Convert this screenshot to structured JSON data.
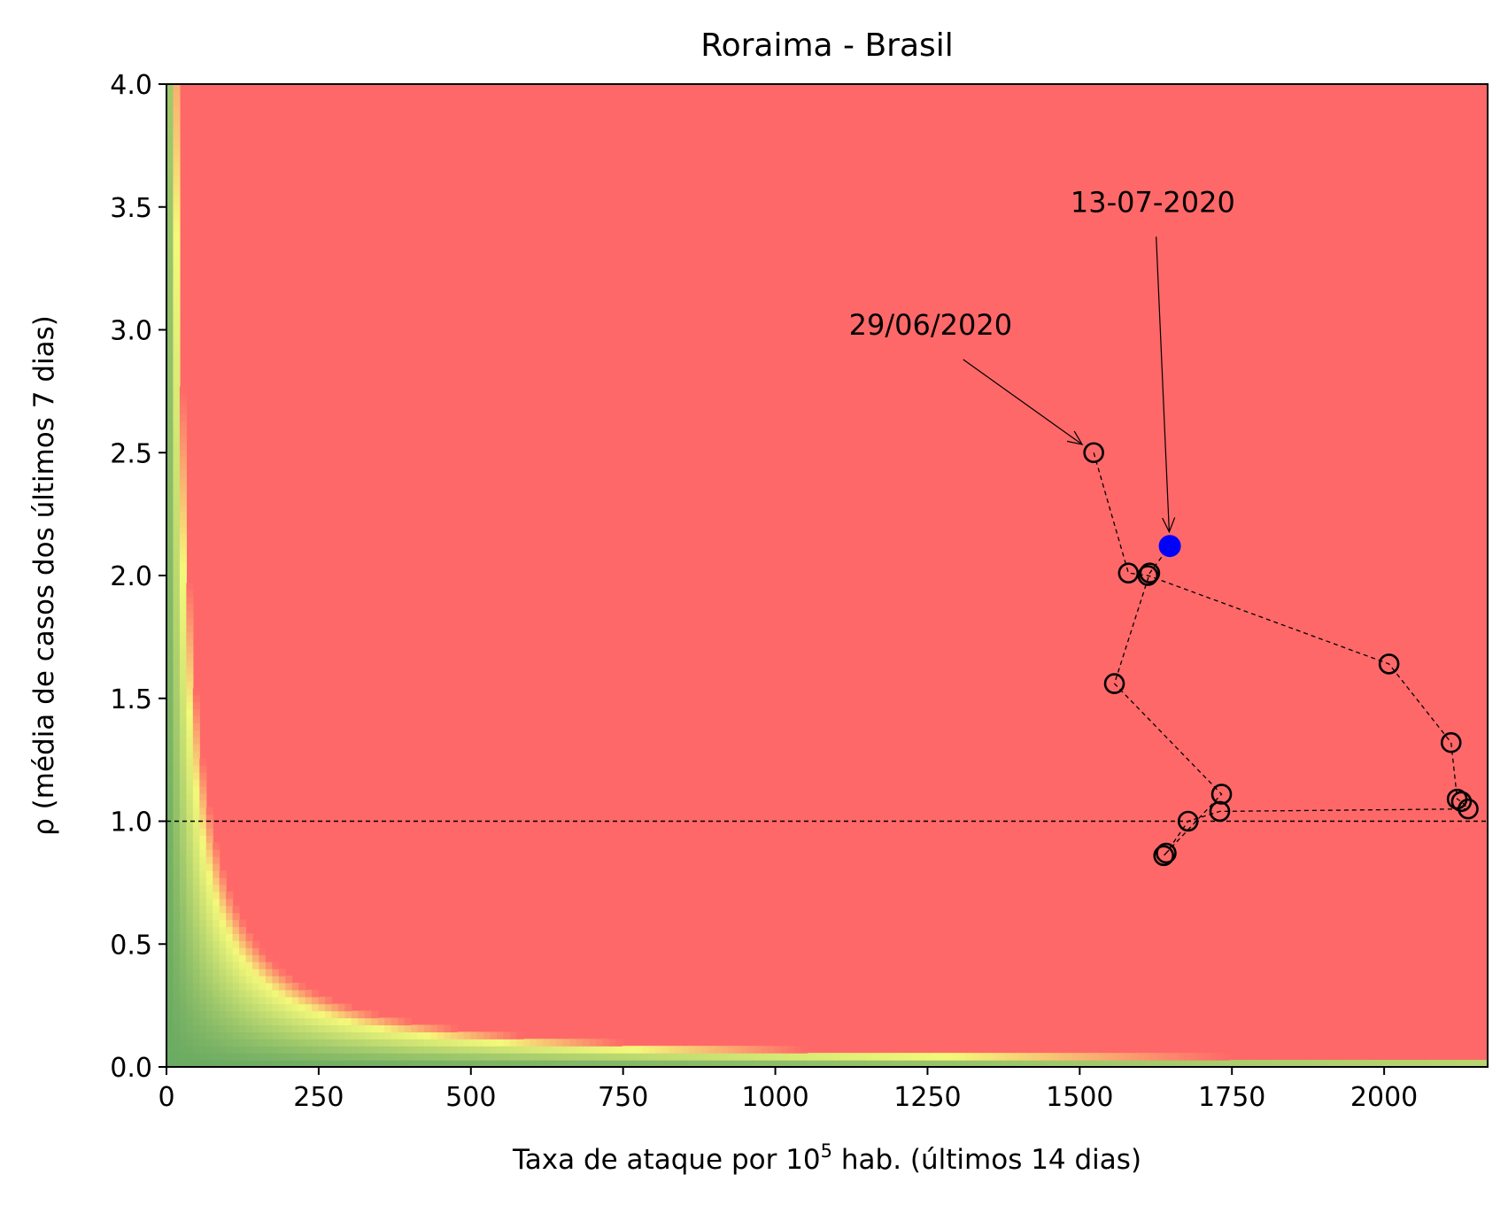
{
  "chart_data": {
    "type": "scatter",
    "title": "Roraima - Brasil",
    "xlabel_main": "Taxa de ataque por 10",
    "xlabel_sup": "5",
    "xlabel_rest": " hab. (últimos 14 dias)",
    "ylabel": "ρ (média de casos dos últimos 7 dias)",
    "xlim": [
      0,
      2170
    ],
    "ylim": [
      0,
      4.0
    ],
    "xticks": [
      0,
      250,
      500,
      750,
      1000,
      1250,
      1500,
      1750,
      2000
    ],
    "xtick_labels": [
      "0",
      "250",
      "500",
      "750",
      "1000",
      "1250",
      "1500",
      "1750",
      "2000"
    ],
    "yticks": [
      0,
      0.5,
      1.0,
      1.5,
      2.0,
      2.5,
      3.0,
      3.5,
      4.0
    ],
    "ytick_labels": [
      "0.0",
      "0.5",
      "1.0",
      "1.5",
      "2.0",
      "2.5",
      "3.0",
      "3.5",
      "4.0"
    ],
    "reference_line_y": 1.0,
    "background": "risk heatmap (green → yellow → red) as a function of x·ρ",
    "colors": {
      "red": "#ff6868",
      "yellow": "#f4f97a",
      "green": "#6aaa62",
      "current_point": "#0000ff",
      "markers": "#000000"
    },
    "series": [
      {
        "points": [
          {
            "x": 1523,
            "y": 2.5
          },
          {
            "x": 1580,
            "y": 2.01
          },
          {
            "x": 1612,
            "y": 2.0
          },
          {
            "x": 2008,
            "y": 1.64
          },
          {
            "x": 2110,
            "y": 1.32
          },
          {
            "x": 2120,
            "y": 1.09
          },
          {
            "x": 2127,
            "y": 1.08
          },
          {
            "x": 2138,
            "y": 1.05
          },
          {
            "x": 1730,
            "y": 1.04
          },
          {
            "x": 1678,
            "y": 1.0
          },
          {
            "x": 1642,
            "y": 0.87
          },
          {
            "x": 1638,
            "y": 0.86
          },
          {
            "x": 1733,
            "y": 1.11
          },
          {
            "x": 1557,
            "y": 1.56
          },
          {
            "x": 1615,
            "y": 2.01
          },
          {
            "x": 1648,
            "y": 2.12
          }
        ]
      }
    ],
    "annotations": [
      {
        "text": "29/06/2020",
        "text_x": 1255,
        "text_y": 2.98,
        "target_index": 0
      },
      {
        "text": "13-07-2020",
        "text_x": 1620,
        "text_y": 3.48,
        "target_index": 15
      }
    ]
  }
}
